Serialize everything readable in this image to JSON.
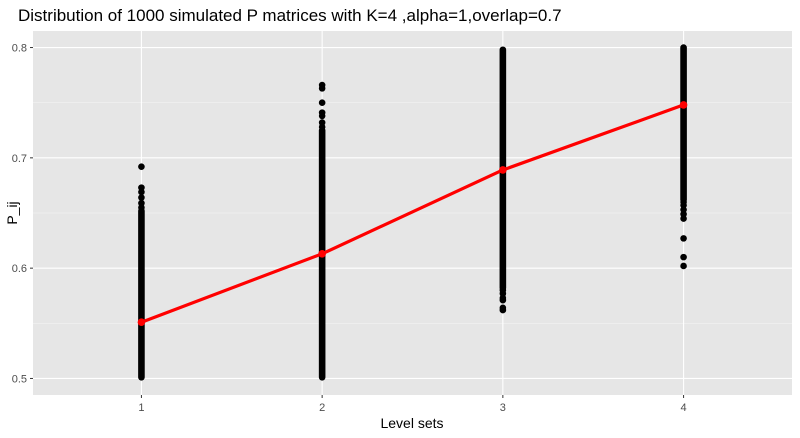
{
  "chart_data": {
    "type": "scatter",
    "title": "Distribution of 1000 simulated P matrices with K=4 ,alpha=1,overlap=0.7",
    "xlabel": "Level sets",
    "ylabel": "P_ij",
    "categories": [
      "1",
      "2",
      "3",
      "4"
    ],
    "x_ticks": [
      "1",
      "2",
      "3",
      "4"
    ],
    "y_ticks": [
      0.5,
      0.6,
      0.7,
      0.8
    ],
    "y_tick_labels": [
      "0.5",
      "0.6",
      "0.7",
      "0.8"
    ],
    "xlim": [
      0.4,
      4.6
    ],
    "ylim": [
      0.485,
      0.815
    ],
    "grid": true,
    "legend": "none",
    "colors": {
      "panel": "#e6e6e6",
      "grid": "#ffffff",
      "points": "#000000",
      "mean_line": "#ff0000"
    },
    "series": [
      {
        "kind": "points",
        "groups": [
          {
            "x": 1,
            "dense_range": [
              0.501,
              0.652
            ],
            "outliers": [
              0.655,
              0.659,
              0.664,
              0.669,
              0.673,
              0.692
            ]
          },
          {
            "x": 2,
            "dense_range": [
              0.501,
              0.725
            ],
            "outliers": [
              0.728,
              0.732,
              0.738,
              0.741,
              0.75,
              0.763,
              0.766
            ]
          },
          {
            "x": 3,
            "dense_range": [
              0.582,
              0.798
            ],
            "outliers": [
              0.562,
              0.564,
              0.571,
              0.573,
              0.577,
              0.58
            ]
          },
          {
            "x": 4,
            "dense_range": [
              0.662,
              0.8
            ],
            "outliers": [
              0.602,
              0.61,
              0.627,
              0.645,
              0.649,
              0.653,
              0.657,
              0.66
            ]
          }
        ]
      },
      {
        "kind": "mean-line",
        "x": [
          1,
          2,
          3,
          4
        ],
        "values": [
          0.551,
          0.613,
          0.689,
          0.748
        ]
      }
    ]
  }
}
